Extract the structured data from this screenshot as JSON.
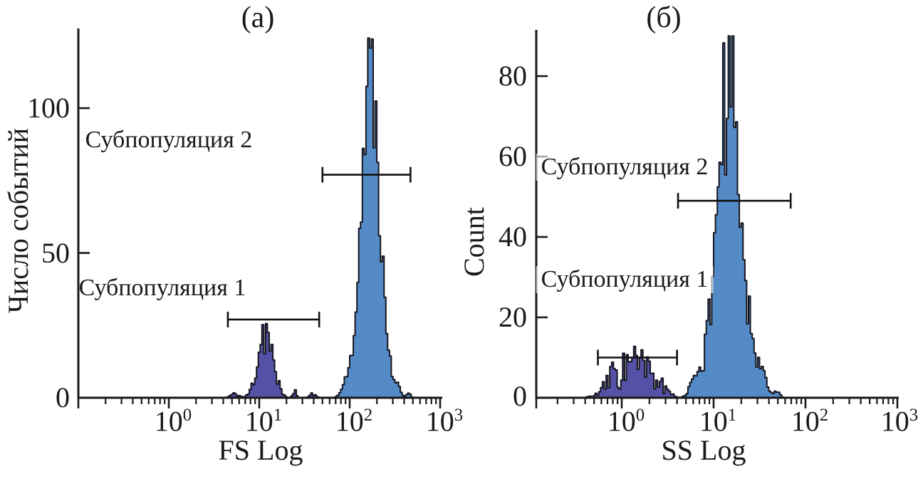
{
  "chart_data": [
    {
      "type": "area",
      "variant": "flow-cytometry-histogram",
      "title": "(a)",
      "xlabel": "FS Log",
      "ylabel": "Число событий",
      "x_scale": "log10",
      "xlim": [
        0.1,
        1070
      ],
      "ylim": [
        0,
        127
      ],
      "grid": false,
      "x_tick_base": "10",
      "x_tick_exponents": [
        "0",
        "1",
        "2",
        "3"
      ],
      "x_tick_values": [
        1,
        10,
        100,
        1000
      ],
      "y_tick_labels": [
        "0",
        "50",
        "100"
      ],
      "y_tick_values": [
        0,
        50,
        100
      ],
      "series": [
        {
          "name": "Субпопуляция 1",
          "color": "#5551a6",
          "peak_x": 11,
          "peak_y": 26,
          "log_mean": 1.05,
          "log_sigma": 0.075,
          "gate": {
            "from": 4.5,
            "to": 46,
            "y": 27
          }
        },
        {
          "name": "Субпопуляция 2",
          "color": "#548bc7",
          "peak_x": 170,
          "peak_y": 121,
          "log_mean": 2.22,
          "log_sigma": 0.105,
          "gate": {
            "from": 50,
            "to": 470,
            "y": 77
          }
        }
      ]
    },
    {
      "type": "area",
      "variant": "flow-cytometry-histogram",
      "title": "(б)",
      "xlabel": "SS Log",
      "ylabel": "Count",
      "x_scale": "log10",
      "xlim": [
        0.12,
        1000
      ],
      "ylim": [
        0,
        91
      ],
      "grid": false,
      "x_tick_base": "10",
      "x_tick_exponents": [
        "0",
        "1",
        "2",
        "3"
      ],
      "x_tick_values": [
        1,
        10,
        100,
        1000
      ],
      "y_tick_labels": [
        "0",
        "20",
        "40",
        "60",
        "80"
      ],
      "y_tick_values": [
        0,
        20,
        40,
        60,
        80
      ],
      "series": [
        {
          "name": "Субпопуляция 1",
          "color": "#5551a6",
          "peak_x": 1.3,
          "peak_y": 9,
          "log_mean": 0.12,
          "log_sigma": 0.185,
          "gate": {
            "from": 0.55,
            "to": 4.0,
            "y": 10
          }
        },
        {
          "name": "Субпопуляция 2",
          "color": "#548bc7",
          "peak_x": 14.5,
          "peak_y": 83,
          "log_mean": 1.16,
          "log_sigma": 0.135,
          "gate": {
            "from": 4.1,
            "to": 69,
            "y": 49
          }
        }
      ]
    }
  ],
  "style": {
    "outline_color": "#15151f",
    "axis_color": "#1a1a1a",
    "gate_color": "#111111"
  }
}
